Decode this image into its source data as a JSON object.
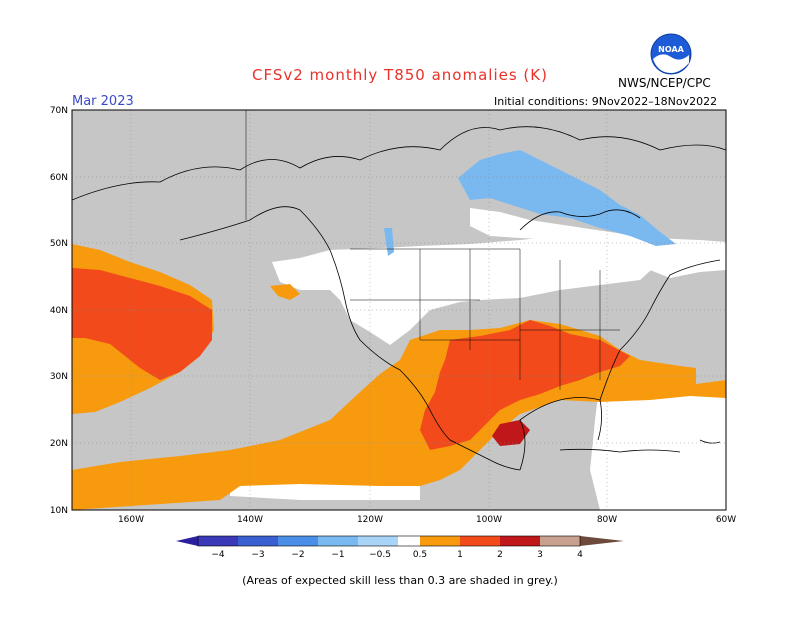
{
  "header": {
    "title": "CFSv2 monthly T850 anomalies (K)",
    "month": "Mar 2023",
    "initial_conditions": "Initial conditions: 9Nov2022–18Nov2022",
    "agency": "NWS/NCEP/CPC",
    "logo_text": "NOAA"
  },
  "axes": {
    "lat_labels": [
      "70N",
      "60N",
      "50N",
      "40N",
      "30N",
      "20N",
      "10N"
    ],
    "lon_labels": [
      "160W",
      "140W",
      "120W",
      "100W",
      "80W",
      "60W"
    ]
  },
  "colorbar": {
    "ticks": [
      "−4",
      "−3",
      "−2",
      "−1",
      "−0.5",
      "0.5",
      "1",
      "2",
      "3",
      "4"
    ],
    "colors": [
      "#2c1fa0",
      "#3a5fd0",
      "#4a8ee8",
      "#7ab8f0",
      "#a8d4f8",
      "#ffffff",
      "#f79a0e",
      "#f24a1a",
      "#c0171a",
      "#8c0a0a",
      "#c8a090",
      "#6e4a3c"
    ]
  },
  "footnote": "(Areas of expected skill less than 0.3 are shaded in grey.)",
  "legend_colors": {
    "grey": "#c6c6c6",
    "orange": "#f79a0e",
    "red_orange": "#f24a1a",
    "dark_red": "#c0171a",
    "light_blue": "#7ab8f0",
    "white": "#ffffff"
  }
}
